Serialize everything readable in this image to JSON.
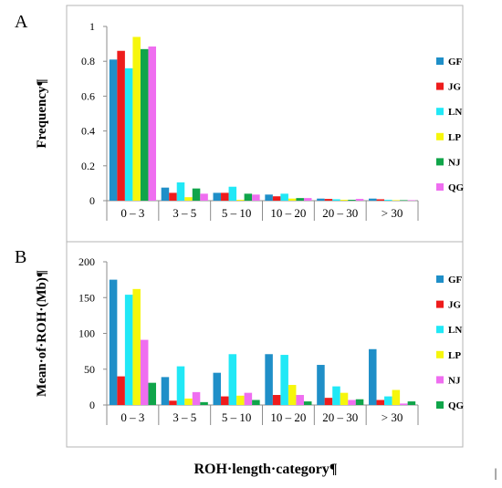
{
  "figure": {
    "x_axis_label": "ROH·length·category¶",
    "right_mark": "|"
  },
  "chart_data": [
    {
      "type": "bar",
      "panel_label": "A",
      "ylabel": "Frequency¶",
      "ylim": [
        0,
        1
      ],
      "yticks": [
        0,
        0.2,
        0.4,
        0.6,
        0.8,
        1
      ],
      "ytick_labels": [
        "0",
        "0.2",
        "0.4",
        "0.6",
        "0.8",
        "1"
      ],
      "categories": [
        "0 – 3",
        "3 – 5",
        "5 – 10",
        "10 – 20",
        "20 – 30",
        "> 30"
      ],
      "legend_position": "right",
      "series": [
        {
          "name": "GF",
          "color": "#1f8fc8",
          "values": [
            0.81,
            0.075,
            0.045,
            0.035,
            0.012,
            0.012
          ]
        },
        {
          "name": "JG",
          "color": "#ee1c1c",
          "values": [
            0.86,
            0.045,
            0.045,
            0.025,
            0.01,
            0.008
          ]
        },
        {
          "name": "LN",
          "color": "#21e8f6",
          "values": [
            0.76,
            0.105,
            0.08,
            0.04,
            0.008,
            0.005
          ]
        },
        {
          "name": "LP",
          "color": "#f6f60c",
          "values": [
            0.94,
            0.02,
            0.005,
            0.012,
            0.005,
            0.003
          ]
        },
        {
          "name": "NJ",
          "color": "#10a54a",
          "values": [
            0.87,
            0.07,
            0.04,
            0.015,
            0.005,
            0.003
          ]
        },
        {
          "name": "QG",
          "color": "#ef6ef0",
          "values": [
            0.885,
            0.04,
            0.035,
            0.015,
            0.01,
            0.003
          ]
        }
      ]
    },
    {
      "type": "bar",
      "panel_label": "B",
      "ylabel": "Mean·of·ROH·(Mb)¶",
      "ylim": [
        0,
        200
      ],
      "yticks": [
        0,
        50,
        100,
        150,
        200
      ],
      "ytick_labels": [
        "0",
        "50",
        "100",
        "150",
        "200"
      ],
      "categories": [
        "0 – 3",
        "3 – 5",
        "5 – 10",
        "10 – 20",
        "20 – 30",
        "> 30"
      ],
      "legend_position": "right",
      "series": [
        {
          "name": "GF",
          "color": "#1f8fc8",
          "values": [
            175,
            39,
            45,
            71,
            56,
            78
          ]
        },
        {
          "name": "JG",
          "color": "#ee1c1c",
          "values": [
            40,
            6,
            12,
            14,
            10,
            7
          ]
        },
        {
          "name": "LN",
          "color": "#21e8f6",
          "values": [
            154,
            54,
            71,
            70,
            26,
            12
          ]
        },
        {
          "name": "LP",
          "color": "#f6f60c",
          "values": [
            162,
            9,
            13,
            28,
            17,
            21
          ]
        },
        {
          "name": "NJ",
          "color": "#ef6ef0",
          "values": [
            91,
            18,
            17,
            14,
            7,
            2
          ]
        },
        {
          "name": "QG",
          "color": "#10a54a",
          "values": [
            31,
            4,
            7,
            5,
            8,
            5
          ]
        }
      ]
    }
  ]
}
